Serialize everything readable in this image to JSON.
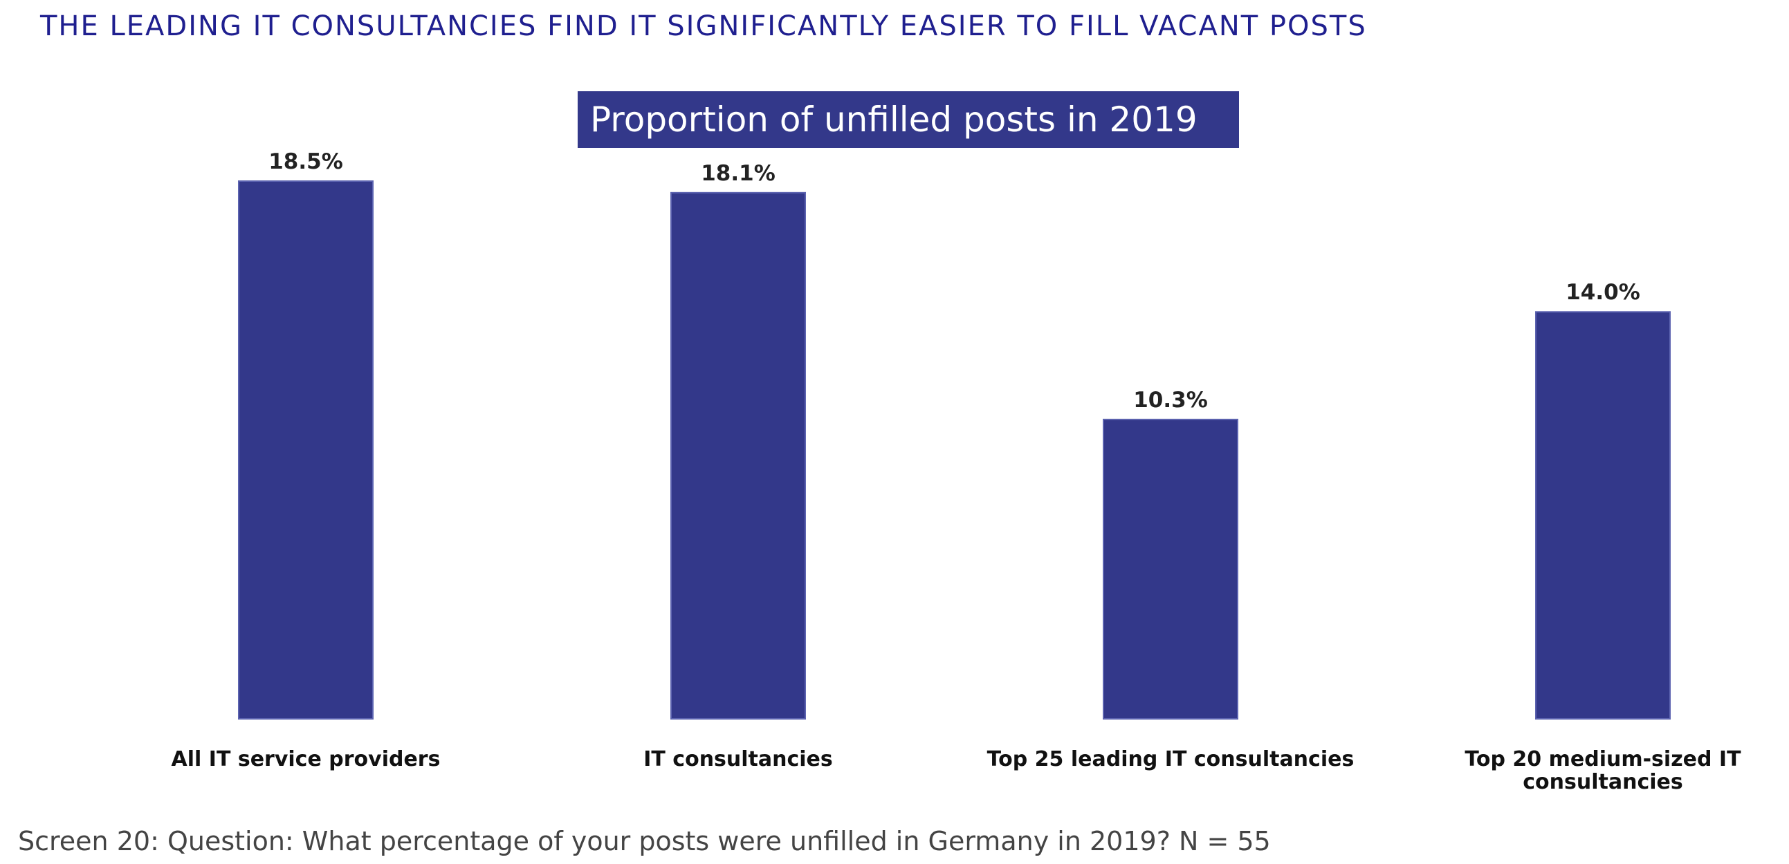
{
  "headline": "THE LEADING IT CONSULTANCIES FIND IT SIGNIFICANTLY EASIER TO FILL VACANT POSTS",
  "footnote": "Screen 20: Question: What percentage of your posts were unfilled in Germany in 2019? N = 55",
  "colors": {
    "headline": "#1f1f8f",
    "bar": "#33388a",
    "title_box": "#33388a",
    "bar_edge": "#5c63b0"
  },
  "chart_data": {
    "type": "bar",
    "title": "Proportion of unfilled posts in 2019",
    "categories": [
      [
        "All IT service providers"
      ],
      [
        "IT consultancies"
      ],
      [
        "Top 25 leading IT consultancies"
      ],
      [
        "Top 20 medium-sized IT",
        "consultancies"
      ]
    ],
    "values": [
      18.5,
      18.1,
      10.3,
      14.0
    ],
    "value_labels": [
      "18.5%",
      "18.1%",
      "10.3%",
      "14.0%"
    ],
    "xlabel": "",
    "ylabel": "",
    "ylim": [
      0,
      18.5
    ],
    "grid": false,
    "legend": "none"
  }
}
